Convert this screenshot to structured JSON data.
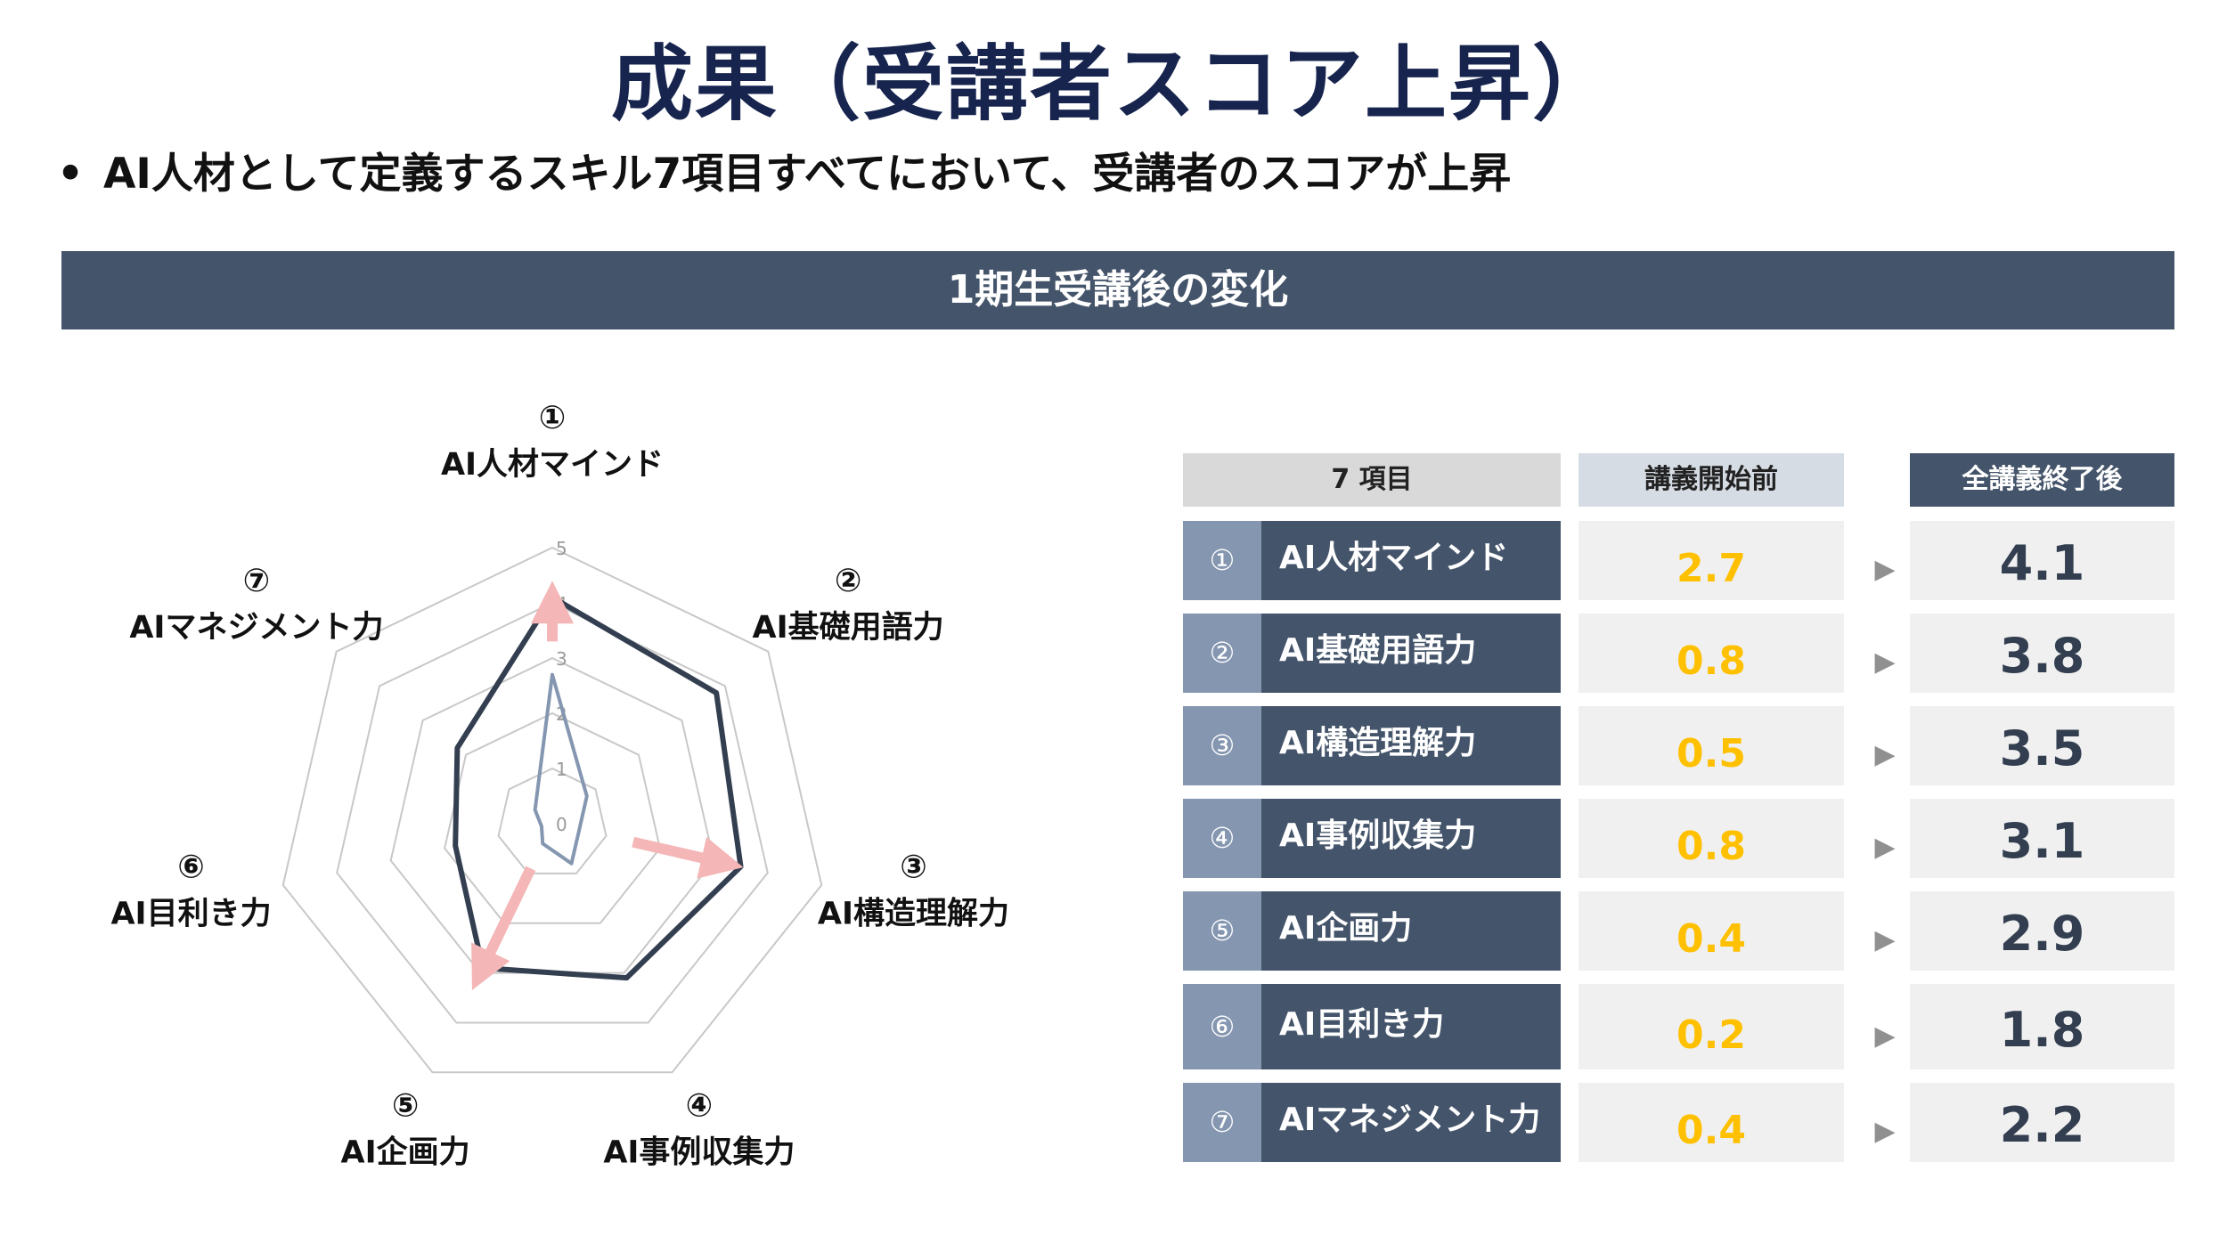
{
  "title": "成果（受講者スコア上昇）",
  "bullet": {
    "marker": "•",
    "text": "AI人材として定義するスキル7項目すべてにおいて、受講者のスコアが上昇"
  },
  "banner": "1期生受講後の変化",
  "colors": {
    "title": "#16244e",
    "banner": "#44546a",
    "before_value": "#ffc000",
    "after_series": "#333f50",
    "before_series": "#8496b0",
    "arrows": "#f4b6b6",
    "grid": "#c8c8c8"
  },
  "chart_data": {
    "type": "radar",
    "axes": [
      {
        "num": "①",
        "label": "AI人材マインド"
      },
      {
        "num": "②",
        "label": "AI基礎用語力"
      },
      {
        "num": "③",
        "label": "AI構造理解力"
      },
      {
        "num": "④",
        "label": "AI事例収集力"
      },
      {
        "num": "⑤",
        "label": "AI企画力"
      },
      {
        "num": "⑥",
        "label": "AI目利き力"
      },
      {
        "num": "⑦",
        "label": "AIマネジメント力"
      }
    ],
    "ticks": [
      "0",
      "1",
      "2",
      "3",
      "4",
      "5"
    ],
    "range": [
      0,
      5
    ],
    "series": [
      {
        "values": [
          2.7,
          0.8,
          0.5,
          0.8,
          0.4,
          0.2,
          0.4
        ]
      },
      {
        "values": [
          4.1,
          3.8,
          3.5,
          3.1,
          2.9,
          1.8,
          2.2
        ]
      }
    ],
    "arrows": [
      {
        "axis": 0,
        "from": 3.3,
        "to": 4.05
      },
      {
        "axis": 2,
        "from": 1.5,
        "to": 3.2
      },
      {
        "axis": 4,
        "from": 0.9,
        "to": 3.0
      }
    ]
  },
  "table": {
    "headers": {
      "items": "7 項目",
      "before": "講義開始前",
      "after": "全講義終了後"
    },
    "arrow": "▶",
    "rows": [
      {
        "num": "①",
        "name": "AI人材マインド",
        "before": "2.7",
        "after": "4.1"
      },
      {
        "num": "②",
        "name": "AI基礎用語力",
        "before": "0.8",
        "after": "3.8"
      },
      {
        "num": "③",
        "name": "AI構造理解力",
        "before": "0.5",
        "after": "3.5"
      },
      {
        "num": "④",
        "name": "AI事例収集力",
        "before": "0.8",
        "after": "3.1"
      },
      {
        "num": "⑤",
        "name": "AI企画力",
        "before": "0.4",
        "after": "2.9"
      },
      {
        "num": "⑥",
        "name": "AI目利き力",
        "before": "0.2",
        "after": "1.8"
      },
      {
        "num": "⑦",
        "name": "AIマネジメント力",
        "before": "0.4",
        "after": "2.2"
      }
    ]
  }
}
